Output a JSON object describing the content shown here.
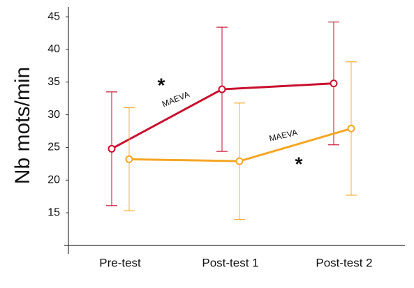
{
  "chart_data": {
    "type": "line",
    "y_label": "Nb mots/min",
    "categories": [
      "Pre-test",
      "Post-test 1",
      "Post-test 2"
    ],
    "series": [
      {
        "color": "#c8102e",
        "values": [
          24.8,
          33.9,
          34.8
        ],
        "errors": [
          8.7,
          9.5,
          9.4
        ]
      },
      {
        "color": "#f5a623",
        "values": [
          23.2,
          22.9,
          27.9
        ],
        "errors": [
          7.9,
          8.9,
          10.2
        ]
      }
    ],
    "annotations": [
      {
        "text": "*",
        "series": 0
      },
      {
        "text": "MAEVA",
        "series": 0
      },
      {
        "text": "MAEVA",
        "series": 1
      },
      {
        "text": "*",
        "series": 1
      }
    ],
    "ylim": [
      10,
      46.5
    ],
    "yticks": [
      15,
      20,
      25,
      30,
      35,
      40,
      45
    ]
  }
}
